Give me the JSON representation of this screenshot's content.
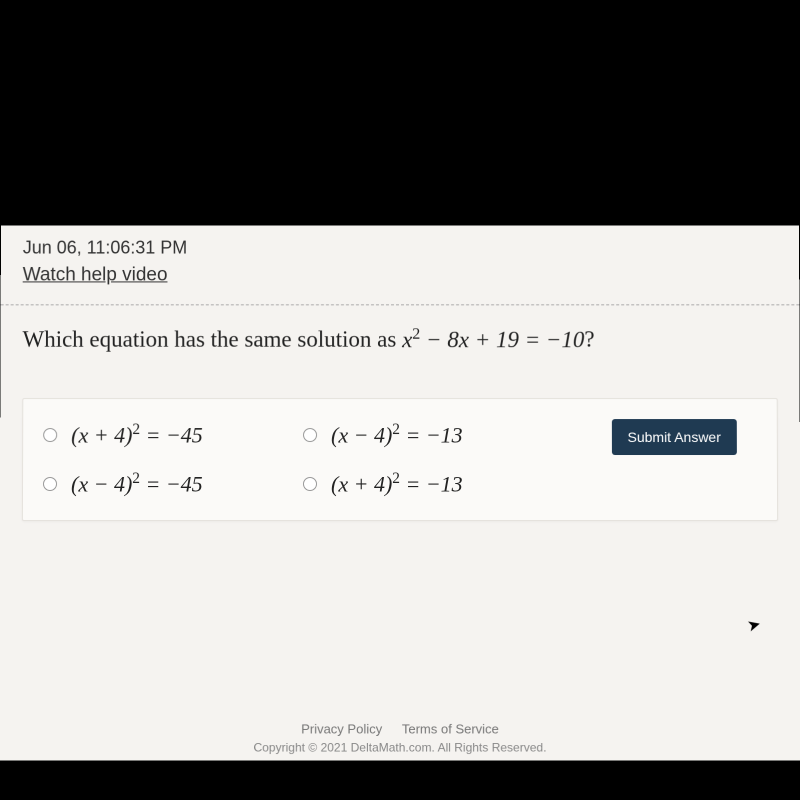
{
  "header": {
    "timestamp": "Jun 06, 11:06:31 PM",
    "help_link": "Watch help video"
  },
  "question": {
    "prefix": "Which equation has the same solution as ",
    "equation": "x² − 8x + 19 = −10",
    "suffix": "?"
  },
  "options": [
    {
      "label": "(x + 4)² = −45"
    },
    {
      "label": "(x − 4)² = −13"
    },
    {
      "label": "(x − 4)² = −45"
    },
    {
      "label": "(x + 4)² = −13"
    }
  ],
  "submit": {
    "label": "Submit Answer"
  },
  "footer": {
    "privacy": "Privacy Policy",
    "terms": "Terms of Service",
    "copyright": "Copyright © 2021 DeltaMath.com. All Rights Reserved."
  },
  "colors": {
    "page_bg": "#f5f3f0",
    "box_bg": "#fbfaf8",
    "submit_bg": "#1f3a52"
  }
}
